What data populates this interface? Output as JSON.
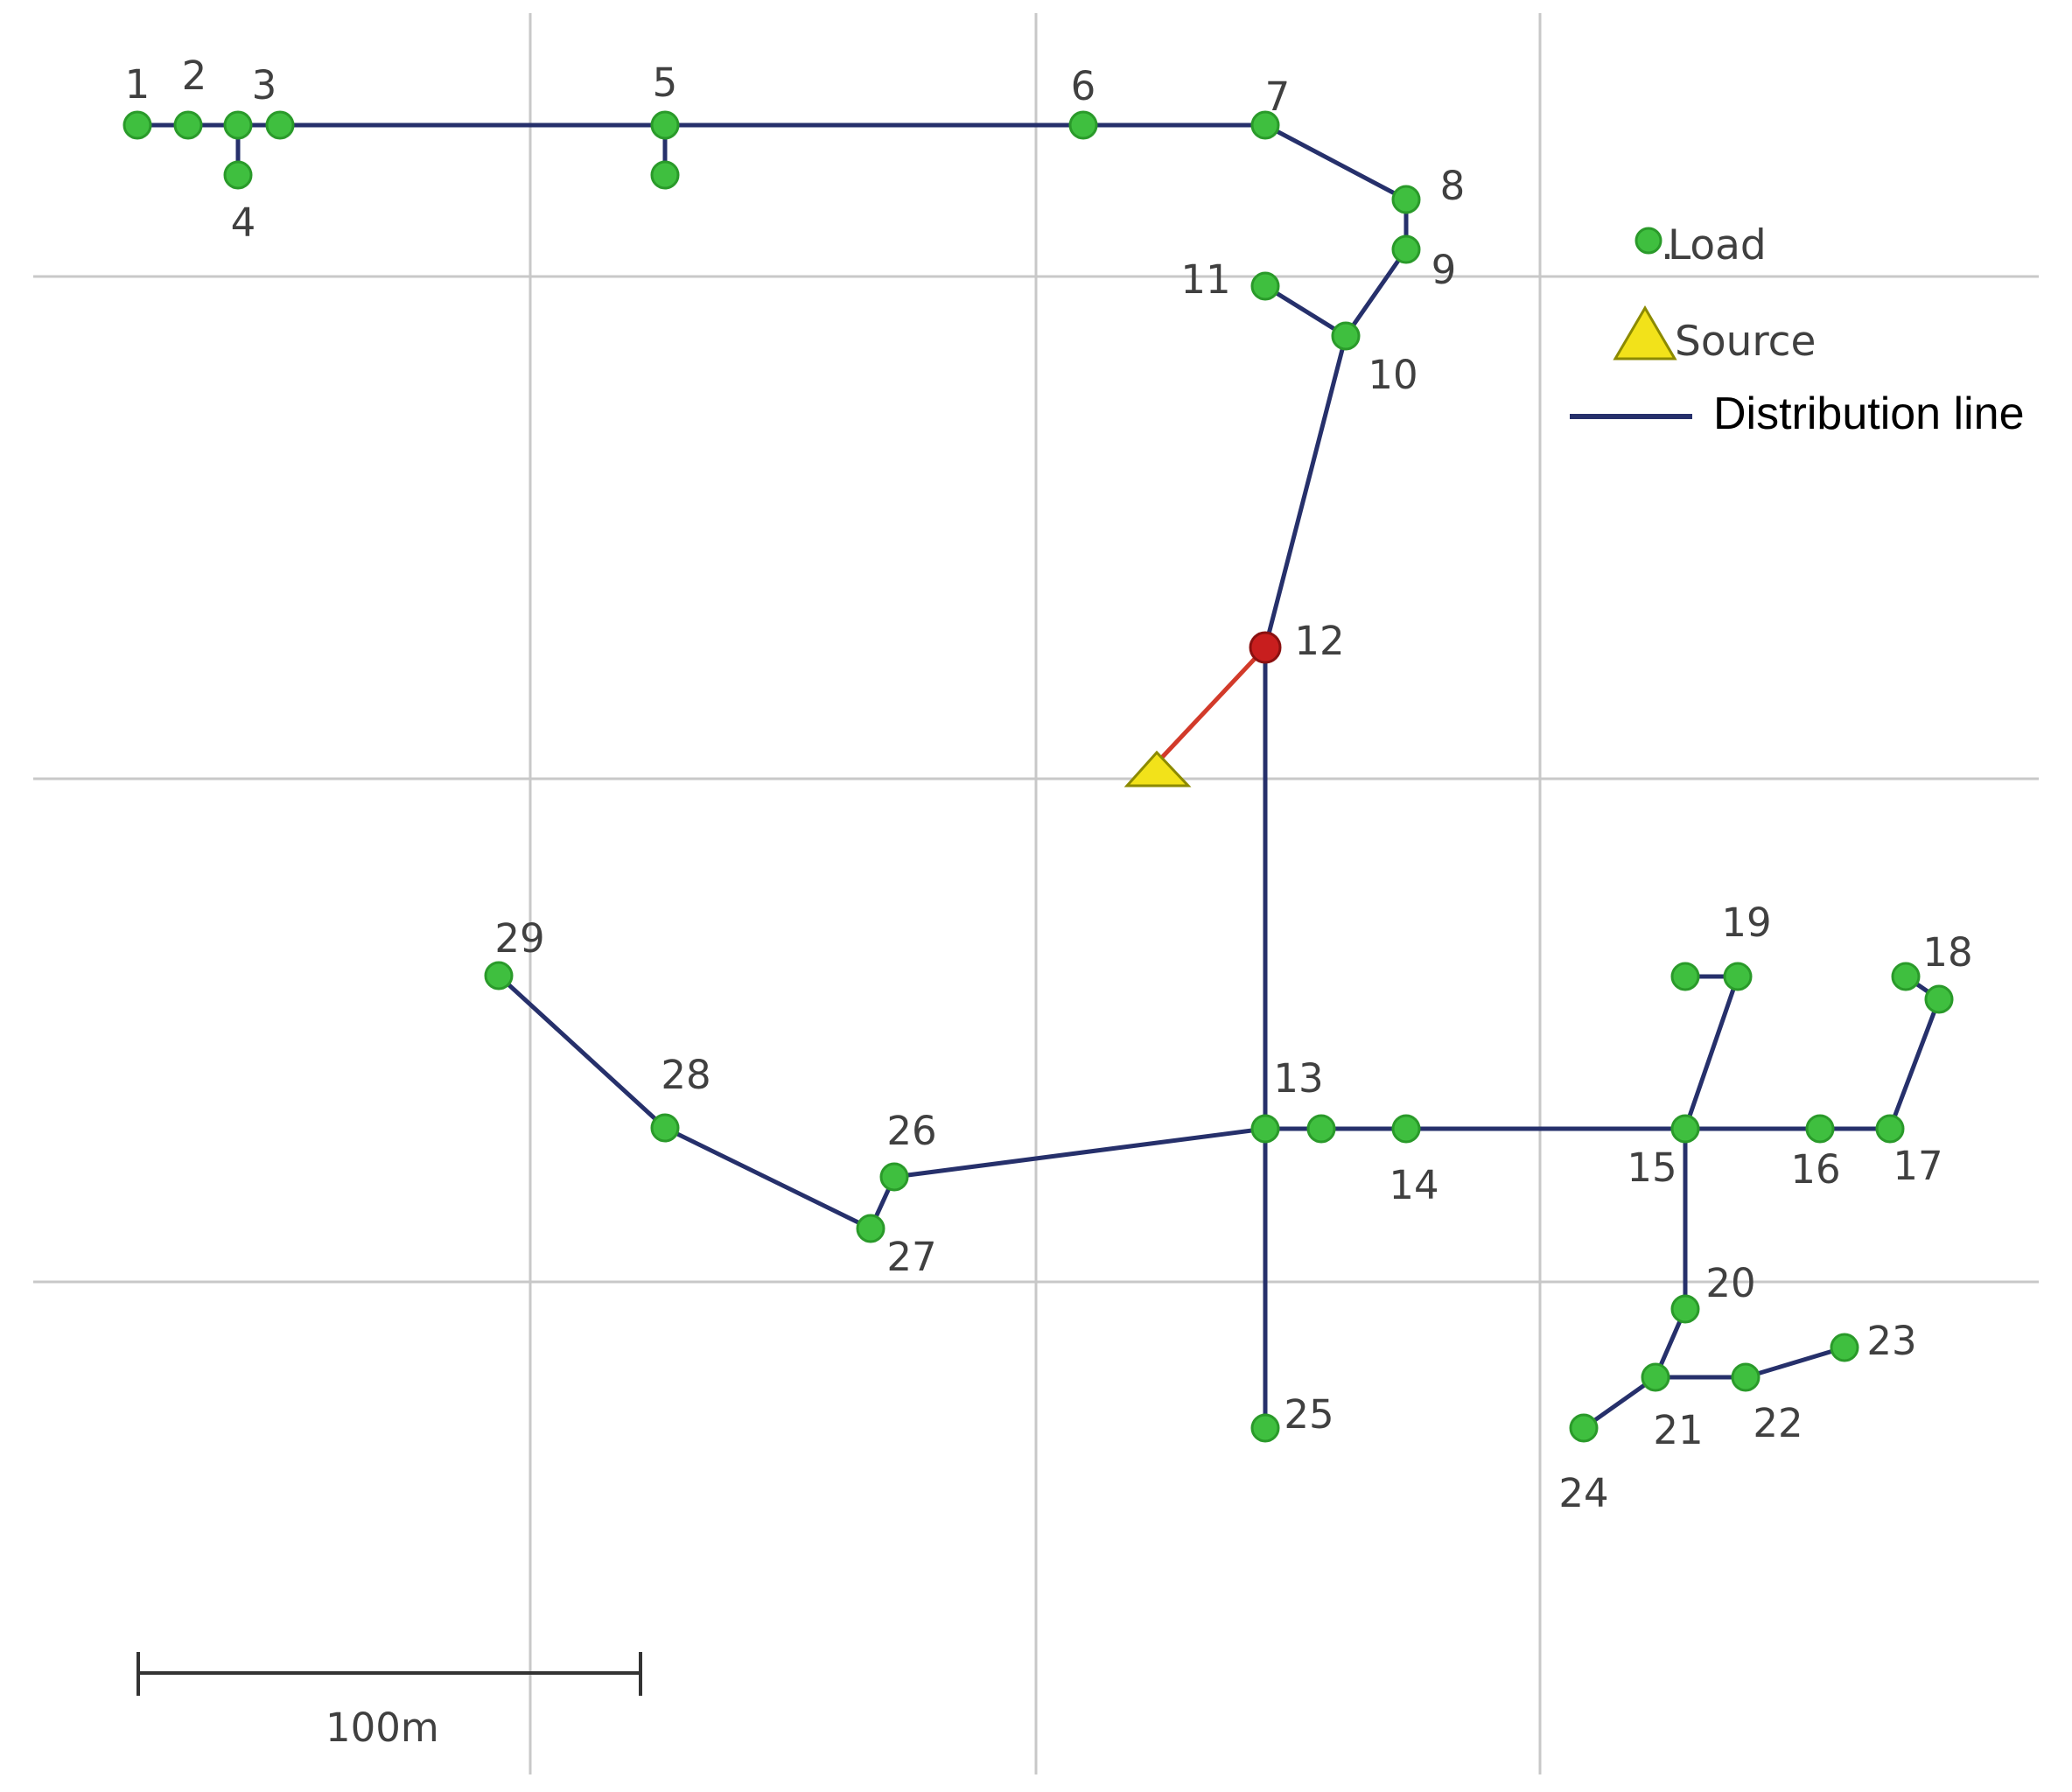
{
  "colors": {
    "line": "#26306b",
    "source_link": "#d23a2a",
    "load_fill": "#3fbf3f",
    "load_stroke": "#2a9a2a",
    "junction_fill": "#c81e1e",
    "source_fill": "#f2e21a",
    "source_stroke": "#8c8a00",
    "grid": "#c8c8c8",
    "label": "#404040"
  },
  "legend": {
    "load_label": "Load",
    "source_label": "Source",
    "line_label": "Distribution line"
  },
  "scale_bar": {
    "label": "100m"
  },
  "node_labels": [
    "1",
    "2",
    "3",
    "4",
    "5",
    "6",
    "7",
    "8",
    "9",
    "10",
    "11",
    "12",
    "13",
    "14",
    "15",
    "16",
    "17",
    "18",
    "19",
    "20",
    "21",
    "22",
    "23",
    "24",
    "25",
    "26",
    "27",
    "28",
    "29"
  ],
  "topology": {
    "edges": [
      [
        "1",
        "2"
      ],
      [
        "2",
        "3"
      ],
      [
        "3",
        "4"
      ],
      [
        "3",
        "5"
      ],
      [
        "5",
        "6"
      ],
      [
        "6",
        "7"
      ],
      [
        "7",
        "8"
      ],
      [
        "8",
        "9"
      ],
      [
        "9",
        "10"
      ],
      [
        "10",
        "11"
      ],
      [
        "10",
        "12"
      ],
      [
        "12",
        "13"
      ],
      [
        "13",
        "14"
      ],
      [
        "14",
        "15"
      ],
      [
        "15",
        "16"
      ],
      [
        "16",
        "17"
      ],
      [
        "17",
        "18"
      ],
      [
        "15",
        "19"
      ],
      [
        "15",
        "20"
      ],
      [
        "20",
        "21"
      ],
      [
        "21",
        "22"
      ],
      [
        "22",
        "23"
      ],
      [
        "21",
        "24"
      ],
      [
        "13",
        "25"
      ],
      [
        "13",
        "26"
      ],
      [
        "26",
        "27"
      ],
      [
        "27",
        "28"
      ],
      [
        "28",
        "29"
      ]
    ],
    "source_feeds": "12"
  }
}
